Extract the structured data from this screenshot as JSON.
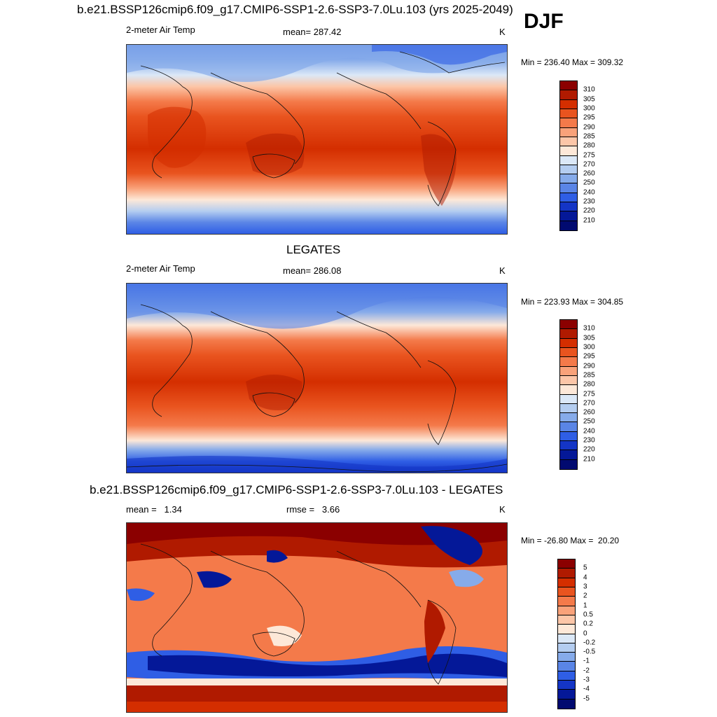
{
  "header": {
    "main_title": "b.e21.BSSP126cmip6.f09_g17.CMIP6-SSP1-2.6-SSP3-7.0Lu.103 (yrs 2025-2049)",
    "season": "DJF"
  },
  "panels": [
    {
      "variable": "2-meter Air Temp",
      "stat": "mean= 287.42",
      "units": "K",
      "minmax": "Min = 236.40 Max = 309.32",
      "colorbar_labels": [
        "310",
        "305",
        "300",
        "295",
        "290",
        "285",
        "280",
        "275",
        "270",
        "260",
        "250",
        "240",
        "230",
        "220",
        "210"
      ]
    },
    {
      "title": "LEGATES",
      "variable": "2-meter Air Temp",
      "stat": "mean= 286.08",
      "units": "K",
      "minmax": "Min = 223.93 Max = 304.85",
      "colorbar_labels": [
        "310",
        "305",
        "300",
        "295",
        "290",
        "285",
        "280",
        "275",
        "270",
        "260",
        "250",
        "240",
        "230",
        "220",
        "210"
      ]
    },
    {
      "title": "b.e21.BSSP126cmip6.f09_g17.CMIP6-SSP1-2.6-SSP3-7.0Lu.103 - LEGATES",
      "stat_left": "mean =   1.34",
      "stat_mid": "rmse =   3.66",
      "units": "K",
      "minmax": "Min = -26.80 Max =  20.20",
      "colorbar_labels": [
        "5",
        "4",
        "3",
        "2",
        "1",
        "0.5",
        "0.2",
        "0",
        "-0.2",
        "-0.5",
        "-1",
        "-2",
        "-3",
        "-4",
        "-5"
      ]
    }
  ],
  "colors": {
    "temp_scale": [
      "#8b0000",
      "#b01a00",
      "#d42e00",
      "#e9541f",
      "#f47a4a",
      "#f9a27a",
      "#fcc6a8",
      "#fde8d8",
      "#dbe8f7",
      "#b4cdf0",
      "#86abea",
      "#5a85e6",
      "#2f5ee5",
      "#1435c6",
      "#041898",
      "#010a70"
    ],
    "diff_scale": [
      "#8b0000",
      "#b01a00",
      "#d42e00",
      "#e9541f",
      "#f47a4a",
      "#f9a27a",
      "#fcc6a8",
      "#fde8d8",
      "#dbe8f7",
      "#b4cdf0",
      "#86abea",
      "#5a85e6",
      "#2f5ee5",
      "#1435c6",
      "#041898",
      "#010a70"
    ]
  }
}
